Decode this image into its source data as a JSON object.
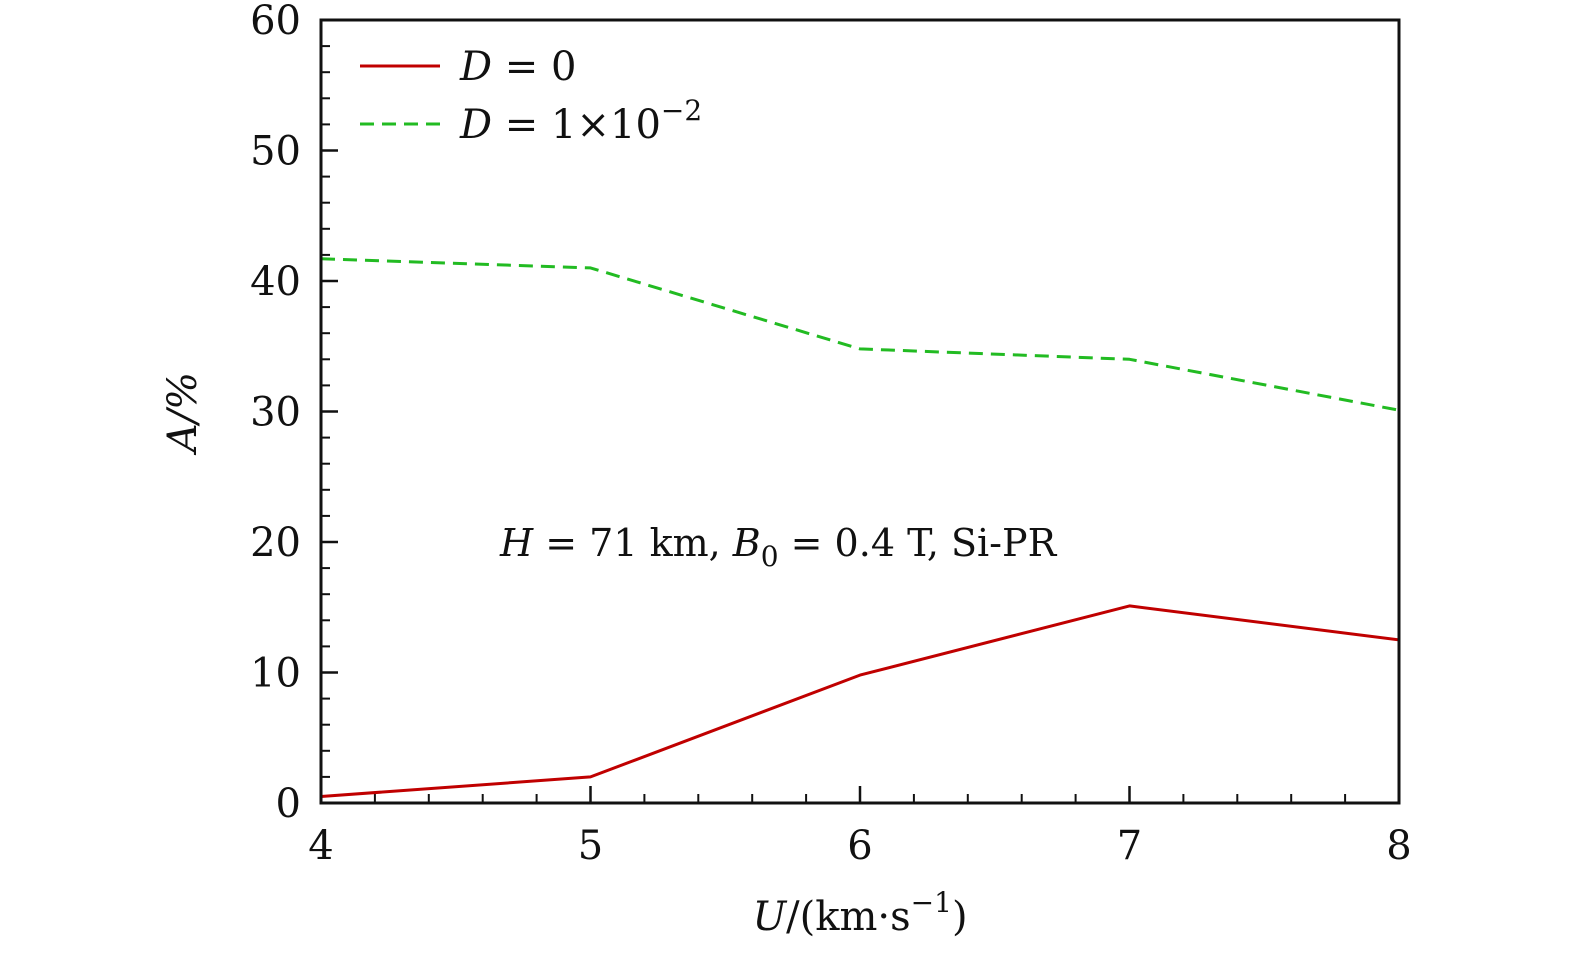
{
  "chart_data": {
    "type": "line",
    "xlabel": {
      "main": "U",
      "rest": "/(km·s",
      "sup": "−1",
      "close": ")"
    },
    "ylabel": "A/%",
    "xlim": [
      4,
      8
    ],
    "ylim": [
      0,
      60
    ],
    "xticks": [
      "4",
      "5",
      "6",
      "7",
      "8"
    ],
    "yticks": [
      "0",
      "10",
      "20",
      "30",
      "40",
      "50",
      "60"
    ],
    "legend_position": "top-left",
    "grid": false,
    "annotation": {
      "h_sym": "H",
      "h_val": " = 71 km, ",
      "b_sym": "B",
      "b_sub": "0",
      "b_val": " = 0.4 T, Si-PR"
    },
    "series": [
      {
        "name": "D = 0",
        "name_sym": "D",
        "name_rest": " = 0",
        "color": "#c00000",
        "dash": "solid",
        "x": [
          4,
          5,
          6,
          7,
          8
        ],
        "y": [
          0.5,
          2.0,
          9.8,
          15.1,
          12.5
        ]
      },
      {
        "name": "D = 1×10−2",
        "name_sym": "D",
        "name_rest": " = 1×10",
        "name_sup": "−2",
        "color": "#22bb22",
        "dash": "dashed",
        "x": [
          4,
          5,
          6,
          7,
          8
        ],
        "y": [
          41.7,
          41.0,
          34.8,
          34.0,
          30.1
        ]
      }
    ]
  }
}
